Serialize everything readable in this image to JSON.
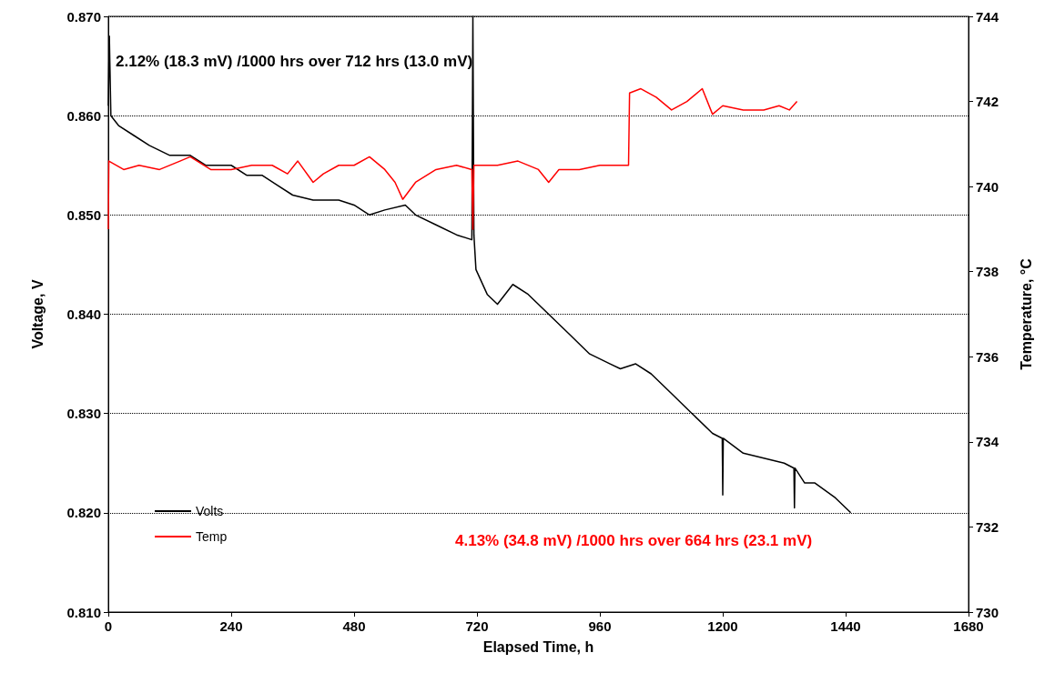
{
  "chart_data": {
    "type": "line",
    "xlabel": "Elapsed Time, h",
    "ylabel": "Voltage, V",
    "y2label": "Temperature, °C",
    "xlim": [
      0,
      1680
    ],
    "xticks": [
      0,
      240,
      480,
      720,
      960,
      1200,
      1440,
      1680
    ],
    "ylim": [
      0.81,
      0.87
    ],
    "yticks": [
      {
        "value": 0.81,
        "label": "0.810"
      },
      {
        "value": 0.82,
        "label": "0.820"
      },
      {
        "value": 0.83,
        "label": "0.830"
      },
      {
        "value": 0.84,
        "label": "0.840"
      },
      {
        "value": 0.85,
        "label": "0.850"
      },
      {
        "value": 0.86,
        "label": "0.860"
      },
      {
        "value": 0.87,
        "label": "0.870"
      }
    ],
    "y2lim": [
      730,
      744
    ],
    "y2ticks": [
      730,
      732,
      734,
      736,
      738,
      740,
      742,
      744
    ],
    "grid": "y",
    "legend": "bottom left",
    "marker": "none",
    "line_style": "solid",
    "series": [
      {
        "name": "Volts",
        "color": "#000000",
        "x": [
          0,
          2,
          5,
          20,
          50,
          80,
          120,
          160,
          190,
          240,
          270,
          300,
          330,
          360,
          400,
          450,
          480,
          510,
          540,
          580,
          600,
          640,
          680,
          710,
          712,
          714,
          718,
          740,
          760,
          790,
          820,
          860,
          900,
          940,
          980,
          1000,
          1030,
          1060,
          1100,
          1140,
          1180,
          1199,
          1200,
          1201,
          1240,
          1280,
          1320,
          1339,
          1340,
          1341,
          1360,
          1380,
          1420,
          1450
        ],
        "values": [
          0.861,
          0.868,
          0.86,
          0.859,
          0.858,
          0.857,
          0.856,
          0.856,
          0.855,
          0.855,
          0.854,
          0.854,
          0.853,
          0.852,
          0.8515,
          0.8515,
          0.851,
          0.85,
          0.8505,
          0.851,
          0.85,
          0.849,
          0.848,
          0.8475,
          0.87,
          0.848,
          0.8445,
          0.842,
          0.841,
          0.843,
          0.842,
          0.84,
          0.838,
          0.836,
          0.835,
          0.8345,
          0.835,
          0.834,
          0.832,
          0.83,
          0.828,
          0.8275,
          0.8218,
          0.8275,
          0.826,
          0.8255,
          0.825,
          0.8245,
          0.8205,
          0.8245,
          0.823,
          0.823,
          0.8215,
          0.82
        ]
      },
      {
        "name": "Temp",
        "color": "#ff0000",
        "axis": "y2",
        "x": [
          0,
          1,
          30,
          60,
          100,
          140,
          160,
          200,
          240,
          280,
          320,
          350,
          370,
          400,
          420,
          450,
          480,
          510,
          540,
          560,
          575,
          600,
          640,
          680,
          710,
          712,
          714,
          760,
          800,
          840,
          860,
          880,
          920,
          960,
          1016,
          1018,
          1040,
          1070,
          1100,
          1130,
          1160,
          1180,
          1200,
          1240,
          1280,
          1310,
          1330,
          1345
        ],
        "values": [
          739.0,
          740.6,
          740.4,
          740.5,
          740.4,
          740.6,
          740.7,
          740.4,
          740.4,
          740.5,
          740.5,
          740.3,
          740.6,
          740.1,
          740.3,
          740.5,
          740.5,
          740.7,
          740.4,
          740.1,
          739.7,
          740.1,
          740.4,
          740.5,
          740.4,
          739.0,
          740.5,
          740.5,
          740.6,
          740.4,
          740.1,
          740.4,
          740.4,
          740.5,
          740.5,
          742.2,
          742.3,
          742.1,
          741.8,
          742.0,
          742.3,
          741.7,
          741.9,
          741.8,
          741.8,
          741.9,
          741.8,
          742.0
        ]
      }
    ],
    "annotations": [
      "2.12% (18.3 mV) /1000 hrs over 712 hrs (13.0 mV)",
      "4.13% (34.8 mV) /1000 hrs over 664 hrs (23.1 mV)"
    ]
  }
}
